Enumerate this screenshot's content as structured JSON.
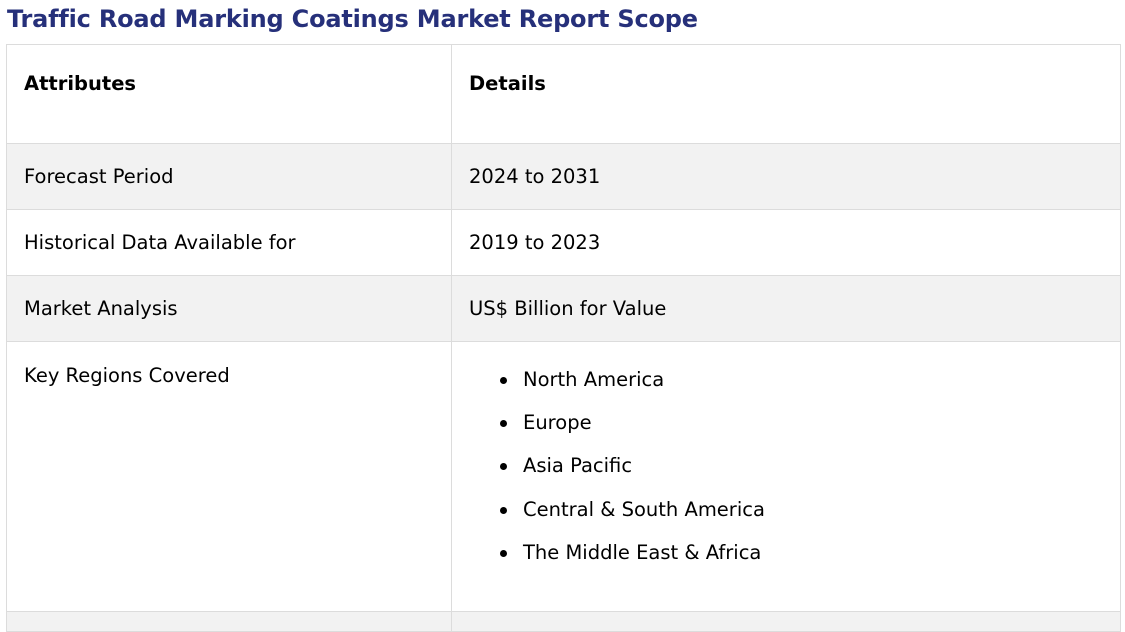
{
  "title": "Traffic Road Marking Coatings Market Report Scope",
  "colors": {
    "title": "#26307a",
    "stripe": "#f2f2f2",
    "border": "#dcdcdc"
  },
  "table": {
    "header": {
      "attribute": "Attributes",
      "details": "Details"
    },
    "rows": [
      {
        "attribute": "Forecast Period",
        "details": "2024 to 2031"
      },
      {
        "attribute": "Historical Data Available for",
        "details": "2019 to 2023"
      },
      {
        "attribute": "Market Analysis",
        "details": "US$ Billion for Value"
      }
    ],
    "regions": {
      "attribute": "Key Regions Covered",
      "items": [
        "North America",
        "Europe",
        "Asia Pacific",
        "Central & South America",
        "The Middle East & Africa"
      ]
    }
  }
}
